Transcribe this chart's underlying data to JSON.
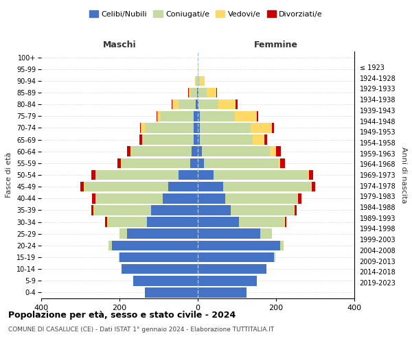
{
  "age_groups": [
    "0-4",
    "5-9",
    "10-14",
    "15-19",
    "20-24",
    "25-29",
    "30-34",
    "35-39",
    "40-44",
    "45-49",
    "50-54",
    "55-59",
    "60-64",
    "65-69",
    "70-74",
    "75-79",
    "80-84",
    "85-89",
    "90-94",
    "95-99",
    "100+"
  ],
  "birth_years": [
    "2019-2023",
    "2014-2018",
    "2009-2013",
    "2004-2008",
    "1999-2003",
    "1994-1998",
    "1989-1993",
    "1984-1988",
    "1979-1983",
    "1974-1978",
    "1969-1973",
    "1964-1968",
    "1959-1963",
    "1954-1958",
    "1949-1953",
    "1944-1948",
    "1939-1943",
    "1934-1938",
    "1929-1933",
    "1924-1928",
    "≤ 1923"
  ],
  "males": {
    "celibi": [
      135,
      165,
      195,
      200,
      220,
      180,
      130,
      120,
      90,
      75,
      50,
      20,
      15,
      10,
      10,
      10,
      5,
      2,
      0,
      0,
      0
    ],
    "coniugati": [
      0,
      0,
      0,
      2,
      8,
      20,
      100,
      145,
      170,
      215,
      210,
      175,
      155,
      130,
      125,
      85,
      45,
      15,
      5,
      0,
      0
    ],
    "vedovi": [
      0,
      0,
      0,
      0,
      0,
      0,
      2,
      2,
      2,
      2,
      2,
      2,
      2,
      2,
      10,
      8,
      15,
      5,
      2,
      0,
      0
    ],
    "divorziati": [
      0,
      0,
      0,
      0,
      0,
      0,
      5,
      5,
      8,
      8,
      10,
      8,
      8,
      8,
      2,
      2,
      2,
      2,
      0,
      0,
      0
    ]
  },
  "females": {
    "nubili": [
      125,
      150,
      175,
      195,
      210,
      160,
      105,
      85,
      70,
      65,
      40,
      15,
      10,
      5,
      5,
      5,
      2,
      2,
      0,
      0,
      0
    ],
    "coniugate": [
      0,
      0,
      0,
      3,
      10,
      30,
      115,
      160,
      185,
      225,
      240,
      190,
      175,
      135,
      130,
      90,
      50,
      20,
      5,
      0,
      0
    ],
    "vedove": [
      0,
      0,
      0,
      0,
      0,
      0,
      2,
      2,
      2,
      2,
      5,
      5,
      15,
      30,
      55,
      55,
      45,
      25,
      12,
      2,
      0
    ],
    "divorziate": [
      0,
      0,
      0,
      0,
      0,
      0,
      5,
      5,
      8,
      8,
      10,
      12,
      12,
      8,
      5,
      5,
      5,
      2,
      0,
      0,
      0
    ]
  },
  "colors": {
    "celibi_nubili": "#4472C4",
    "coniugati": "#C5D9A0",
    "vedovi": "#FFD966",
    "divorziati": "#CC0000"
  },
  "xlim": 400,
  "title1": "Popolazione per età, sesso e stato civile - 2024",
  "title2": "COMUNE DI CASALUCE (CE) - Dati ISTAT 1° gennaio 2024 - Elaborazione TUTTITALIA.IT",
  "ylabel_left": "Fasce di età",
  "ylabel_right": "Anni di nascita"
}
